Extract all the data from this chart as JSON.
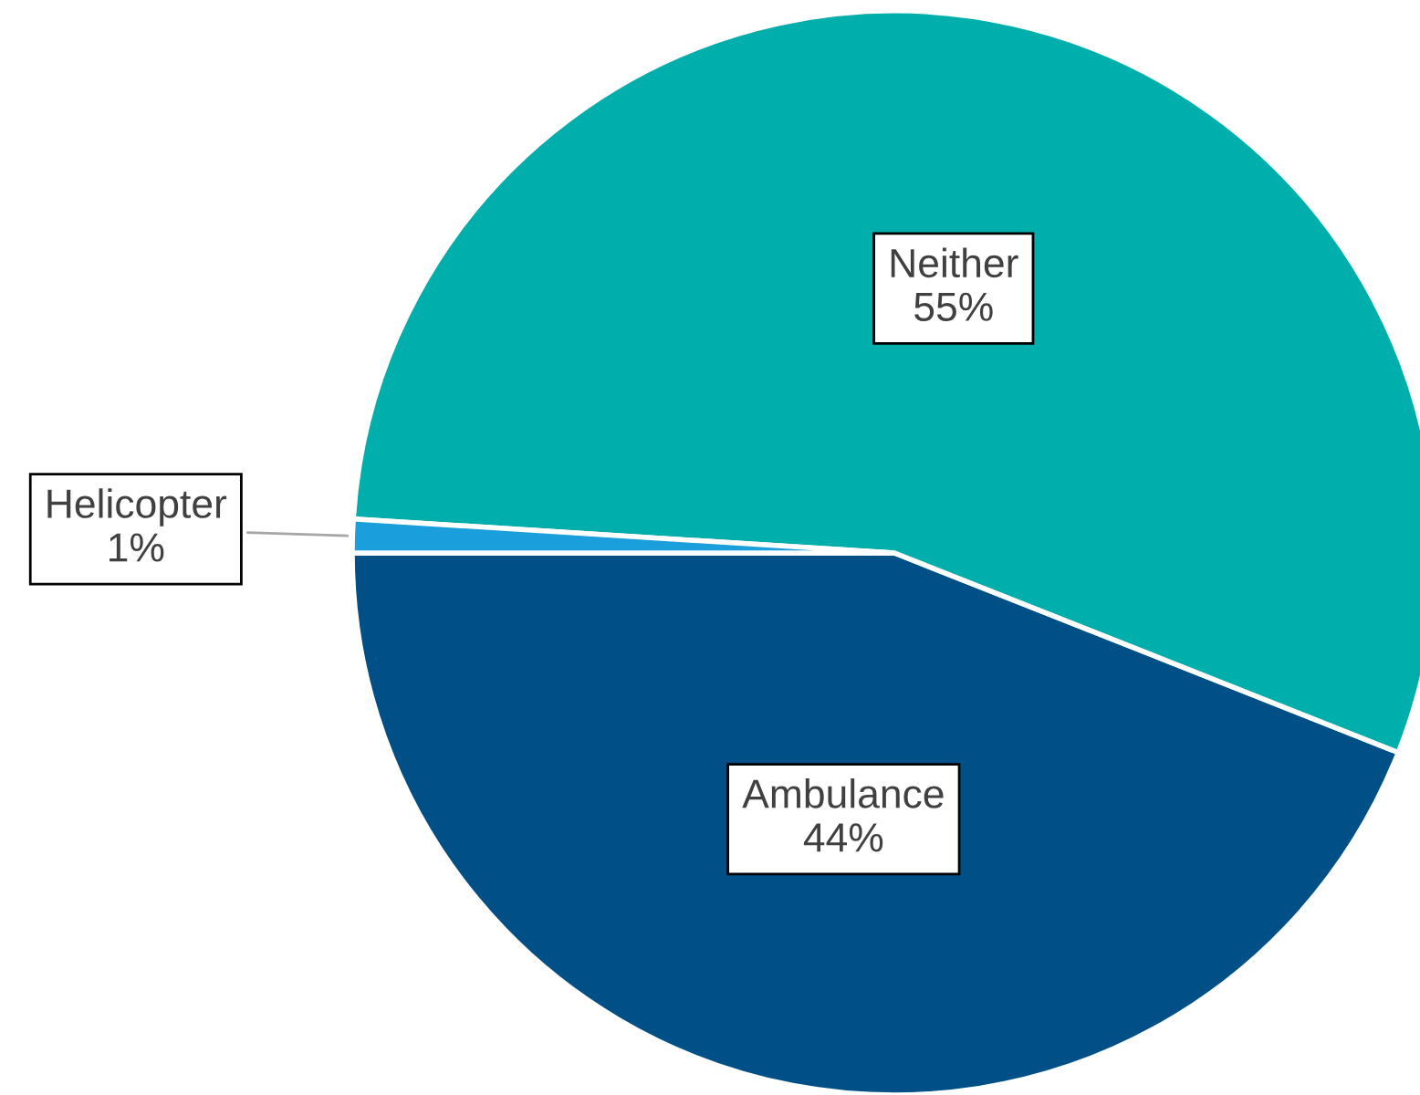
{
  "chart_data": {
    "type": "pie",
    "categories": [
      "Ambulance",
      "Neither",
      "Helicopter"
    ],
    "values": [
      44,
      55,
      1
    ],
    "colors": [
      "#005087",
      "#00aeab",
      "#1a9fdc"
    ],
    "value_labels": [
      "44%",
      "55%",
      "1%"
    ],
    "legend": false
  }
}
